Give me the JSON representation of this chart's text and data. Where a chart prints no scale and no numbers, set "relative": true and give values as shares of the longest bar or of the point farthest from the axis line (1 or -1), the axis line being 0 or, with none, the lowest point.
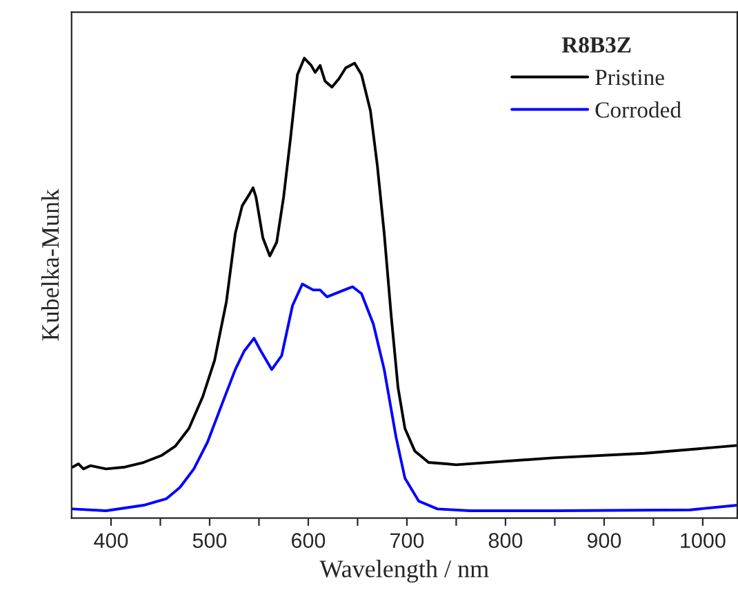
{
  "chart_data": {
    "type": "line",
    "relative": true,
    "xlabel": "Wavelength / nm",
    "ylabel": "Kubelka-Munk",
    "legend_title": "R8B3Z",
    "legend": "top right",
    "grid": false,
    "xlim": [
      360,
      1035
    ],
    "xticks": [
      400,
      {
        "value": 450,
        "label": null
      },
      500,
      {
        "value": 550,
        "label": null
      },
      600,
      {
        "value": 650,
        "label": null
      },
      700,
      {
        "value": 750,
        "label": null
      },
      800,
      {
        "value": 850,
        "label": null
      },
      900,
      {
        "value": 950,
        "label": null
      },
      1000
    ],
    "series": [
      {
        "name": "Pristine",
        "color": "#000000",
        "x": [
          361,
          367,
          372,
          379,
          395,
          414,
          433,
          451,
          465,
          479,
          493,
          505,
          517,
          526,
          533,
          540,
          544,
          547,
          554,
          561,
          568,
          575,
          582,
          589,
          596,
          603,
          607,
          612,
          617,
          624,
          631,
          638,
          647,
          654,
          663,
          670,
          677,
          684,
          691,
          698,
          708,
          722,
          740,
          750,
          848,
          941,
          1035
        ],
        "values": [
          0.111,
          0.118,
          0.107,
          0.114,
          0.107,
          0.111,
          0.121,
          0.136,
          0.156,
          0.195,
          0.264,
          0.343,
          0.471,
          0.619,
          0.679,
          0.703,
          0.718,
          0.698,
          0.609,
          0.57,
          0.6,
          0.698,
          0.826,
          0.964,
          1,
          0.984,
          0.969,
          0.984,
          0.95,
          0.937,
          0.955,
          0.979,
          0.989,
          0.964,
          0.886,
          0.767,
          0.619,
          0.442,
          0.284,
          0.195,
          0.146,
          0.121,
          0.118,
          0.116,
          0.131,
          0.141,
          0.158
        ]
      },
      {
        "name": "Corroded",
        "color": "#0000ff",
        "x": [
          361,
          395,
          433,
          456,
          470,
          484,
          498,
          512,
          526,
          535,
          545,
          552,
          563,
          573,
          584,
          594,
          605,
          612,
          619,
          633,
          645,
          654,
          666,
          677,
          689,
          698,
          712,
          731,
          764,
          848,
          987,
          1035
        ],
        "values": [
          0.02,
          0.016,
          0.028,
          0.042,
          0.067,
          0.107,
          0.166,
          0.245,
          0.323,
          0.363,
          0.391,
          0.363,
          0.323,
          0.353,
          0.462,
          0.509,
          0.496,
          0.496,
          0.481,
          0.493,
          0.503,
          0.488,
          0.422,
          0.323,
          0.176,
          0.087,
          0.037,
          0.02,
          0.016,
          0.016,
          0.018,
          0.028
        ]
      }
    ]
  }
}
